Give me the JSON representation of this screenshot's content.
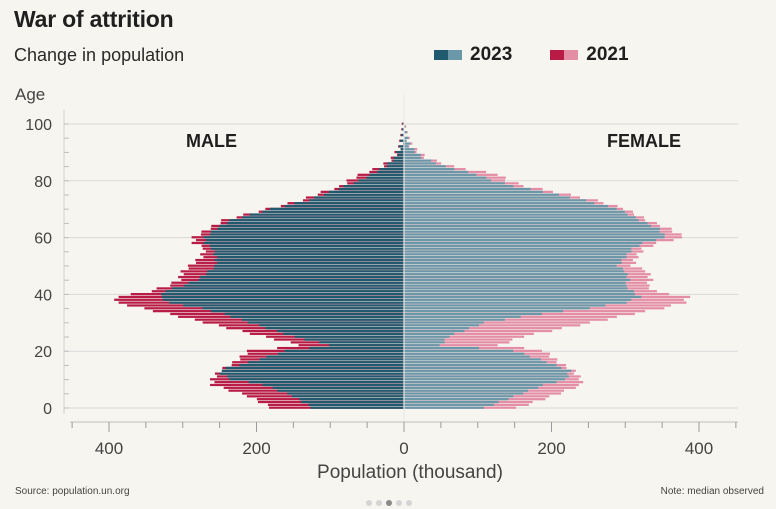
{
  "header": {
    "title": "War of attrition",
    "subtitle": "Change in population"
  },
  "footer": {
    "source": "Source: population.un.org",
    "note": "Note: median observed"
  },
  "colors": {
    "male_2023": "#1f5a6e",
    "female_2023": "#6b98a8",
    "male_2021": "#b81c46",
    "female_2021": "#e38ea6",
    "grid": "#d9d9d9",
    "background": "#f7f5ef"
  },
  "chart_data": {
    "type": "bar",
    "orientation": "horizontal-diverging",
    "title": "War of attrition",
    "subtitle": "Change in population",
    "ylabel": "Age",
    "xlabel": "Population (thousand)",
    "ylim": [
      0,
      100
    ],
    "y_ticks": [
      0,
      20,
      40,
      60,
      80,
      100
    ],
    "xlim": [
      -400,
      400
    ],
    "x_tick_labels": [
      "400",
      "200",
      "0",
      "200",
      "400"
    ],
    "x_tick_values": [
      -400,
      -200,
      0,
      200,
      400
    ],
    "grid": true,
    "legend": {
      "placement": "top-right",
      "entries": [
        "2023",
        "2021"
      ]
    },
    "side_labels": {
      "left": "MALE",
      "right": "FEMALE"
    },
    "age_anchors": [
      0,
      4,
      8,
      10,
      13,
      16,
      20,
      22,
      25,
      30,
      33,
      35,
      37,
      39,
      41,
      43,
      45,
      48,
      50,
      53,
      56,
      58,
      60,
      63,
      66,
      70,
      73,
      76,
      78,
      80,
      82,
      85,
      88,
      92,
      96,
      99
    ],
    "series": [
      {
        "name": "2023",
        "side": "MALE",
        "values": [
          125,
          150,
          190,
          235,
          255,
          210,
          160,
          100,
          150,
          210,
          245,
          275,
          320,
          330,
          325,
          300,
          280,
          265,
          255,
          255,
          260,
          270,
          270,
          255,
          235,
          180,
          130,
          100,
          80,
          60,
          45,
          25,
          12,
          5,
          2,
          0
        ]
      },
      {
        "name": "2021",
        "side": "MALE",
        "values": [
          180,
          210,
          260,
          260,
          250,
          230,
          210,
          140,
          190,
          270,
          320,
          355,
          390,
          390,
          345,
          320,
          305,
          300,
          290,
          275,
          270,
          285,
          285,
          265,
          245,
          185,
          140,
          110,
          85,
          75,
          60,
          30,
          15,
          5,
          2,
          0
        ]
      },
      {
        "name": "2023",
        "side": "FEMALE",
        "values": [
          110,
          150,
          190,
          220,
          225,
          195,
          150,
          50,
          60,
          110,
          185,
          250,
          300,
          320,
          310,
          300,
          305,
          300,
          290,
          300,
          310,
          325,
          355,
          345,
          320,
          290,
          245,
          190,
          150,
          120,
          100,
          55,
          25,
          8,
          3,
          0
        ]
      },
      {
        "name": "2021",
        "side": "FEMALE",
        "values": [
          155,
          200,
          240,
          240,
          230,
          210,
          190,
          130,
          160,
          255,
          310,
          350,
          380,
          385,
          340,
          330,
          335,
          330,
          310,
          315,
          325,
          345,
          380,
          360,
          330,
          300,
          260,
          205,
          165,
          140,
          130,
          65,
          30,
          10,
          3,
          0
        ]
      }
    ]
  }
}
